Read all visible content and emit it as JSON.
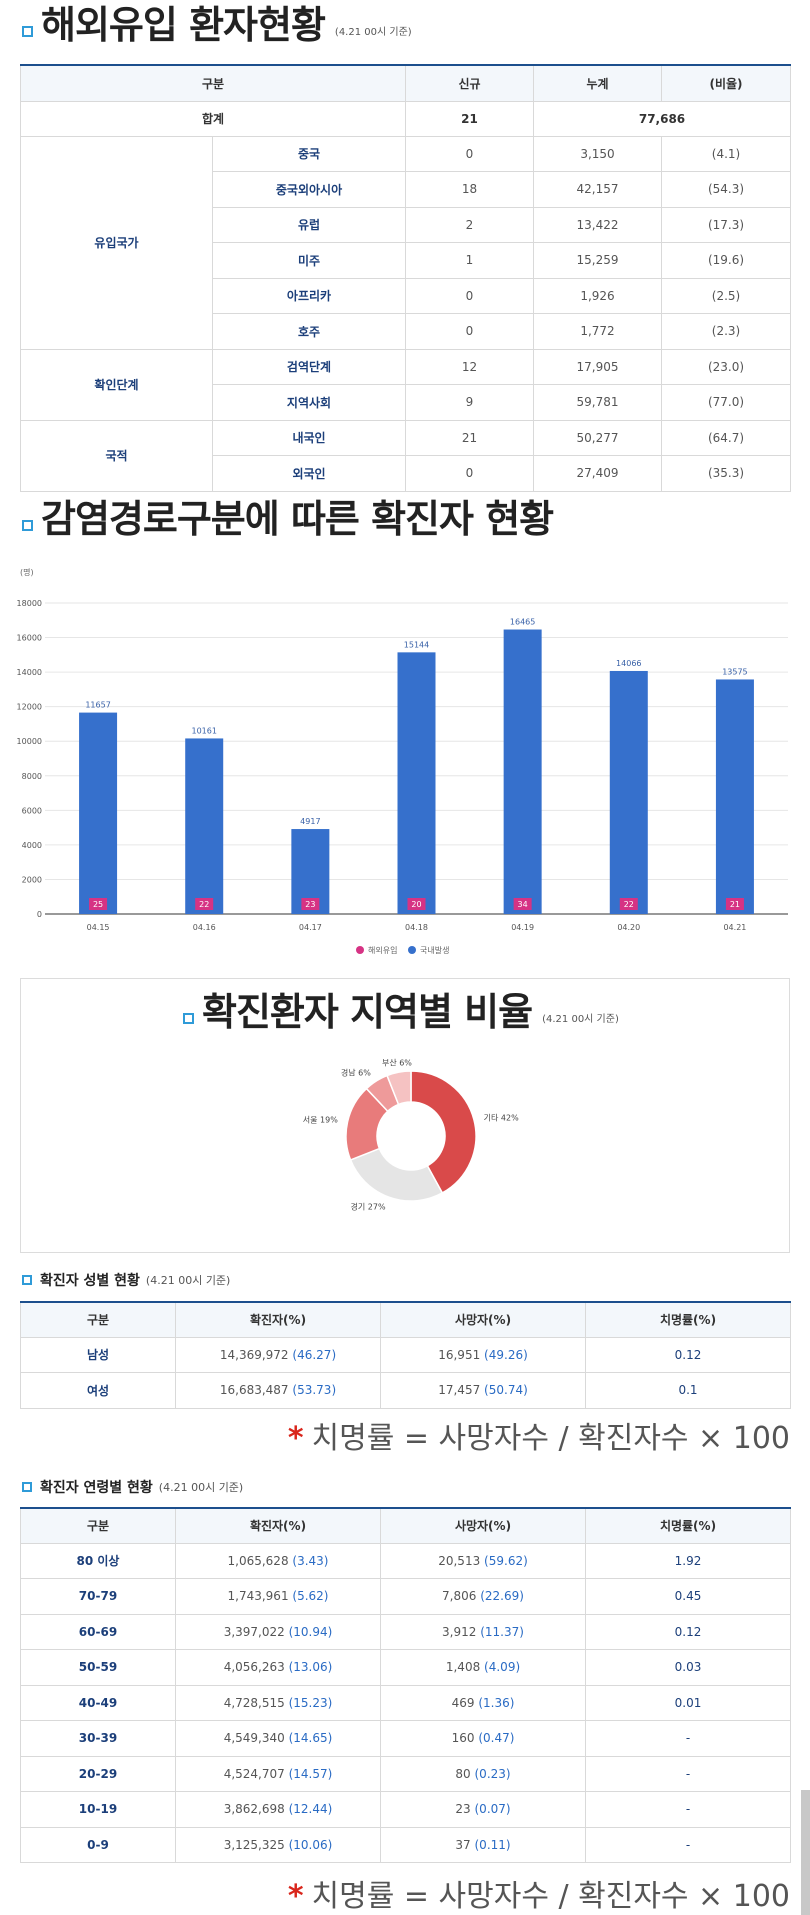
{
  "overseas": {
    "title": "해외유입 환자현황",
    "note": "(4.21 00시 기준)",
    "headers": [
      "구분",
      "신규",
      "누계",
      "(비율)"
    ],
    "total": {
      "label": "합계",
      "new": "21",
      "cum": "77,686"
    },
    "groups": [
      {
        "group": "유입국가",
        "rows": [
          {
            "label": "중국",
            "new": "0",
            "cum": "3,150",
            "ratio": "(4.1)"
          },
          {
            "label": "중국외아시아",
            "new": "18",
            "cum": "42,157",
            "ratio": "(54.3)"
          },
          {
            "label": "유럽",
            "new": "2",
            "cum": "13,422",
            "ratio": "(17.3)"
          },
          {
            "label": "미주",
            "new": "1",
            "cum": "15,259",
            "ratio": "(19.6)"
          },
          {
            "label": "아프리카",
            "new": "0",
            "cum": "1,926",
            "ratio": "(2.5)"
          },
          {
            "label": "호주",
            "new": "0",
            "cum": "1,772",
            "ratio": "(2.3)"
          }
        ]
      },
      {
        "group": "확인단계",
        "rows": [
          {
            "label": "검역단계",
            "new": "12",
            "cum": "17,905",
            "ratio": "(23.0)"
          },
          {
            "label": "지역사회",
            "new": "9",
            "cum": "59,781",
            "ratio": "(77.0)"
          }
        ]
      },
      {
        "group": "국적",
        "rows": [
          {
            "label": "내국인",
            "new": "21",
            "cum": "50,277",
            "ratio": "(64.7)"
          },
          {
            "label": "외국인",
            "new": "0",
            "cum": "27,409",
            "ratio": "(35.3)"
          }
        ]
      }
    ]
  },
  "route": {
    "title": "감염경로구분에 따른 확진자 현황"
  },
  "chart_data": [
    {
      "type": "bar",
      "title": "",
      "ylabel": "(명)",
      "categories": [
        "04.15",
        "04.16",
        "04.17",
        "04.18",
        "04.19",
        "04.20",
        "04.21"
      ],
      "ylim": [
        0,
        18000
      ],
      "yticks": [
        "0",
        "2000",
        "4000",
        "6000",
        "8000",
        "10000",
        "12000",
        "14000",
        "16000",
        "18000"
      ],
      "series": [
        {
          "name": "국내발생",
          "values": [
            11657,
            10161,
            4917,
            15144,
            16465,
            14066,
            13575
          ],
          "labels": [
            "11657",
            "10161",
            "4917",
            "15144",
            "16465",
            "14066",
            "13575"
          ],
          "color": "#3670cc"
        },
        {
          "name": "해외유입",
          "values": [
            25,
            22,
            23,
            20,
            34,
            22,
            21
          ],
          "labels": [
            "25",
            "22",
            "23",
            "20",
            "34",
            "22",
            "21"
          ],
          "color": "#d63384"
        }
      ],
      "legend": "bottom",
      "grid": true
    },
    {
      "type": "pie",
      "title": "확진환자 지역별 비율",
      "note": "(4.21 00시 기준)",
      "categories": [
        "기타",
        "경기",
        "서울",
        "경남",
        "부산"
      ],
      "values": [
        42,
        27,
        19,
        6,
        6
      ],
      "labels": [
        "기타 42%",
        "경기 27%",
        "서울 19%",
        "경남 6%",
        "부산 6%"
      ],
      "colors": [
        "#d94a4a",
        "#e5e5e5",
        "#e87b7b",
        "#ee9a9a",
        "#f5c2c2"
      ]
    }
  ],
  "gender": {
    "title": "확진자 성별 현황",
    "note": "(4.21 00시 기준)",
    "headers": [
      "구분",
      "확진자(%)",
      "사망자(%)",
      "치명률(%)"
    ],
    "rows": [
      {
        "label": "남성",
        "conf": "14,369,972",
        "conf_pct": "(46.27)",
        "death": "16,951",
        "death_pct": "(49.26)",
        "fatal": "0.12"
      },
      {
        "label": "여성",
        "conf": "16,683,487",
        "conf_pct": "(53.73)",
        "death": "17,457",
        "death_pct": "(50.74)",
        "fatal": "0.1"
      }
    ],
    "formula": "치명률 = 사망자수 / 확진자수 × 100"
  },
  "age": {
    "title": "확진자 연령별 현황",
    "note": "(4.21 00시 기준)",
    "headers": [
      "구분",
      "확진자(%)",
      "사망자(%)",
      "치명률(%)"
    ],
    "rows": [
      {
        "label": "80 이상",
        "conf": "1,065,628",
        "conf_pct": "(3.43)",
        "death": "20,513",
        "death_pct": "(59.62)",
        "fatal": "1.92"
      },
      {
        "label": "70-79",
        "conf": "1,743,961",
        "conf_pct": "(5.62)",
        "death": "7,806",
        "death_pct": "(22.69)",
        "fatal": "0.45"
      },
      {
        "label": "60-69",
        "conf": "3,397,022",
        "conf_pct": "(10.94)",
        "death": "3,912",
        "death_pct": "(11.37)",
        "fatal": "0.12"
      },
      {
        "label": "50-59",
        "conf": "4,056,263",
        "conf_pct": "(13.06)",
        "death": "1,408",
        "death_pct": "(4.09)",
        "fatal": "0.03"
      },
      {
        "label": "40-49",
        "conf": "4,728,515",
        "conf_pct": "(15.23)",
        "death": "469",
        "death_pct": "(1.36)",
        "fatal": "0.01"
      },
      {
        "label": "30-39",
        "conf": "4,549,340",
        "conf_pct": "(14.65)",
        "death": "160",
        "death_pct": "(0.47)",
        "fatal": "-"
      },
      {
        "label": "20-29",
        "conf": "4,524,707",
        "conf_pct": "(14.57)",
        "death": "80",
        "death_pct": "(0.23)",
        "fatal": "-"
      },
      {
        "label": "10-19",
        "conf": "3,862,698",
        "conf_pct": "(12.44)",
        "death": "23",
        "death_pct": "(0.07)",
        "fatal": "-"
      },
      {
        "label": "0-9",
        "conf": "3,125,325",
        "conf_pct": "(10.06)",
        "death": "37",
        "death_pct": "(0.11)",
        "fatal": "-"
      }
    ],
    "formula": "치명률 = 사망자수 / 확진자수 × 100"
  },
  "colors": {
    "accent": "#2f9bd8",
    "header_border": "#1c4f8d",
    "bar": "#3670cc",
    "overseas": "#d63384",
    "star": "#d9261c"
  }
}
